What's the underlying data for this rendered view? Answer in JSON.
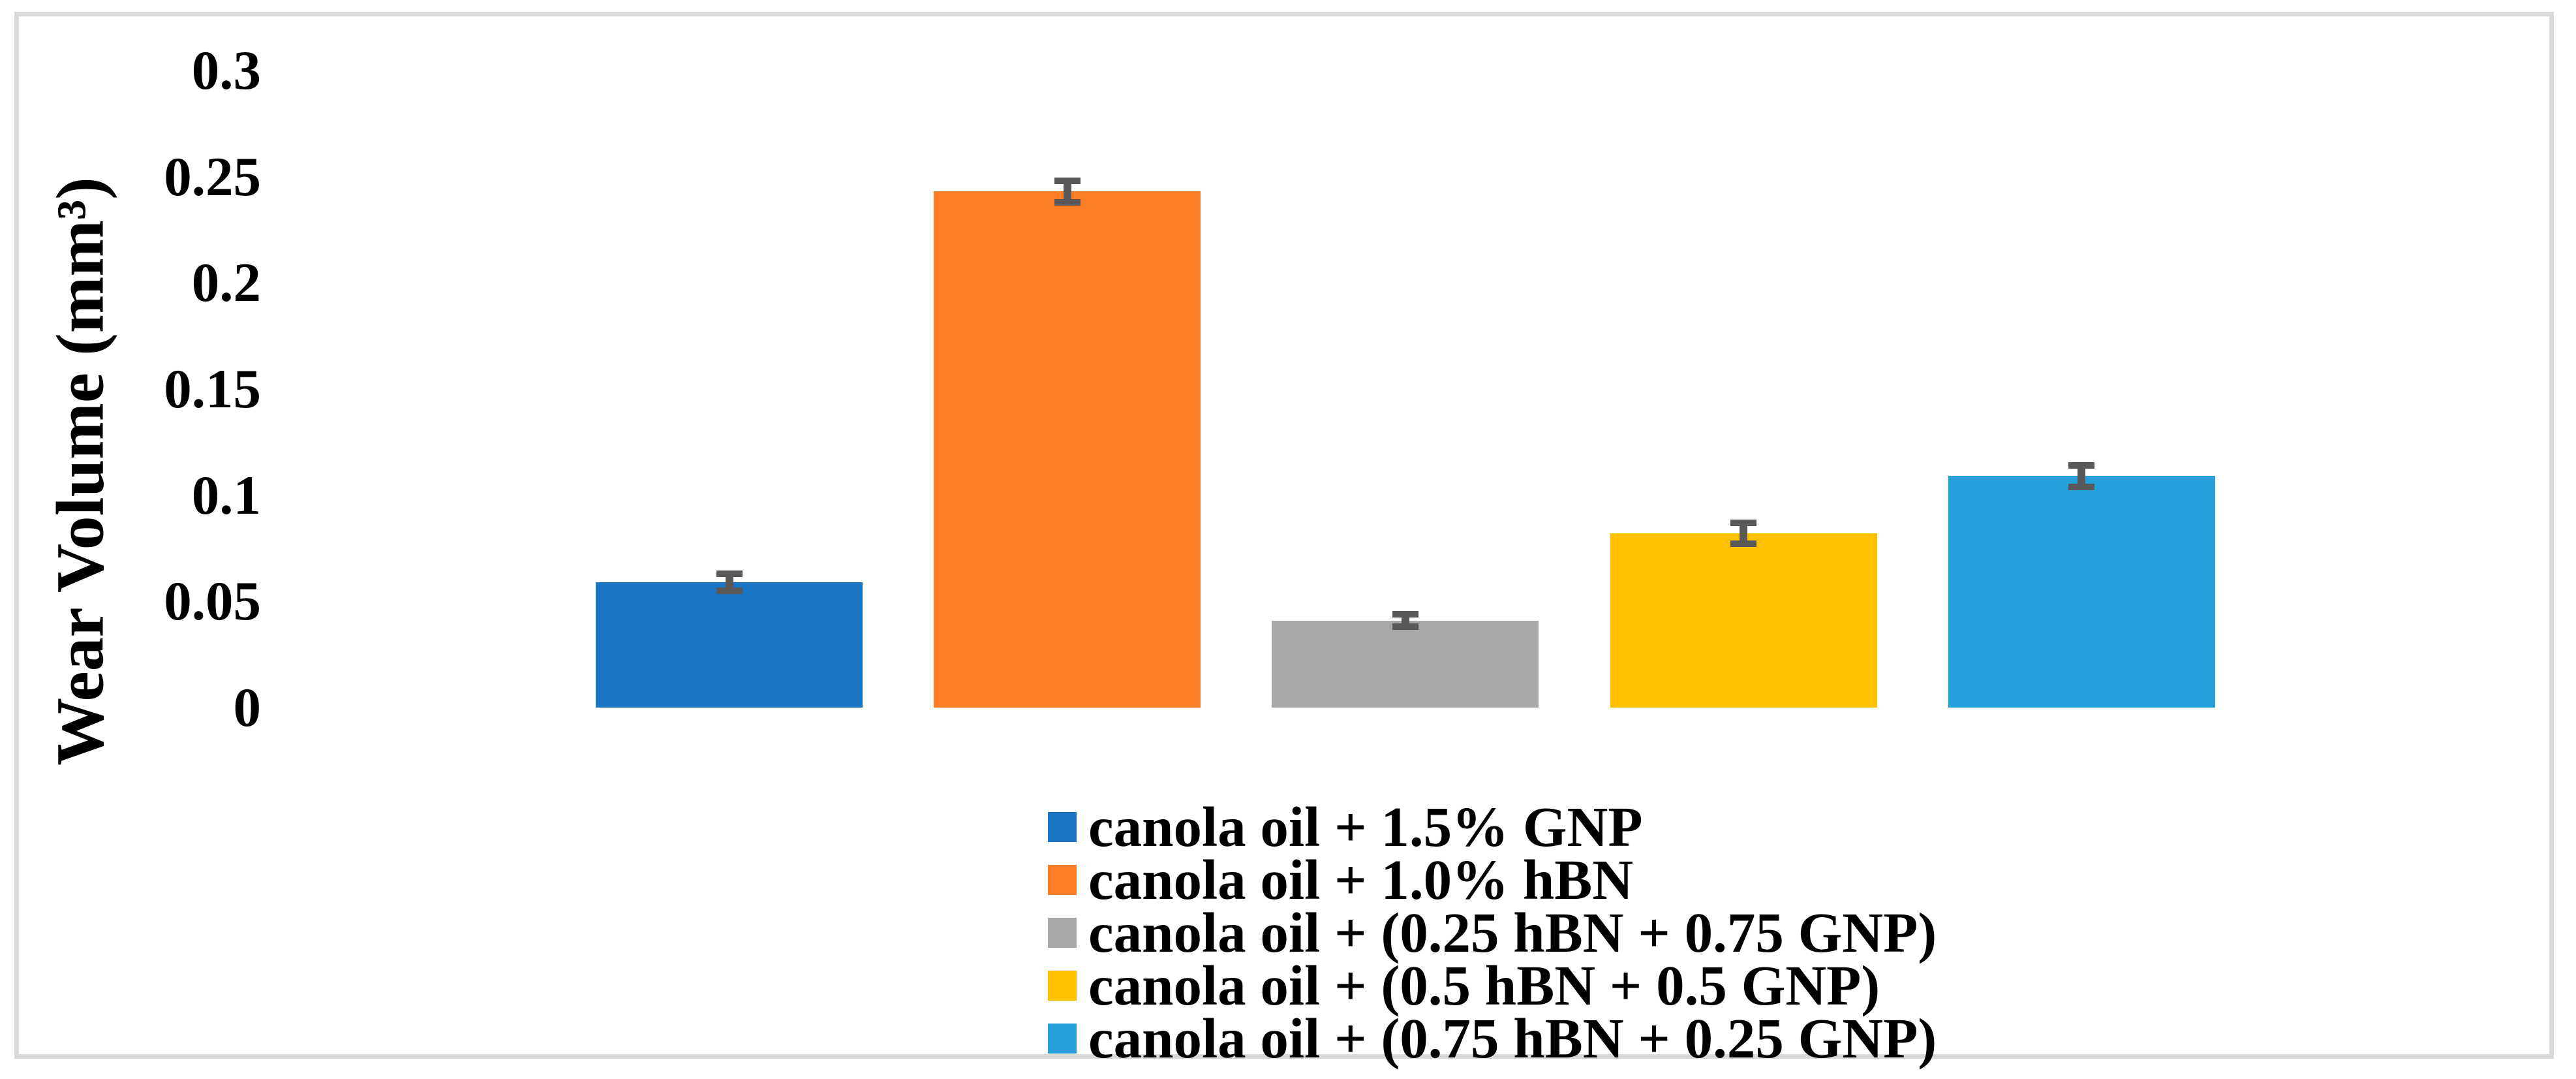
{
  "chart_data": {
    "type": "bar",
    "title": "",
    "ylabel": "Wear Volume (mm³)",
    "xlabel": "",
    "ylim": [
      0,
      0.3
    ],
    "grid": false,
    "axis_lines": false,
    "legend_position": "bottom-center",
    "error_bar_color": "#595959",
    "yticks": [
      {
        "value": 0,
        "label": "0"
      },
      {
        "value": 0.05,
        "label": "0.05"
      },
      {
        "value": 0.1,
        "label": "0.1"
      },
      {
        "value": 0.15,
        "label": "0.15"
      },
      {
        "value": 0.2,
        "label": "0.2"
      },
      {
        "value": 0.25,
        "label": "0.25"
      },
      {
        "value": 0.3,
        "label": "0.3"
      }
    ],
    "categories": [
      "canola oil + 1.5% GNP",
      "canola oil + 1.0% hBN",
      "canola oil + (0.25 hBN + 0.75 GNP)",
      "canola oil + (0.5 hBN + 0.5 GNP)",
      "canola oil + (0.75 hBN + 0.25 GNP)"
    ],
    "series": [
      {
        "label": "canola oil + 1.5% GNP",
        "value": 0.059,
        "error": 0.004,
        "color": "#1B73C4"
      },
      {
        "label": "canola oil + 1.0% hBN",
        "value": 0.243,
        "error": 0.005,
        "color": "#FB7D26"
      },
      {
        "label": "canola oil + (0.25 hBN + 0.75 GNP)",
        "value": 0.041,
        "error": 0.003,
        "color": "#A8A8A8"
      },
      {
        "label": "canola oil + (0.5 hBN + 0.5 GNP)",
        "value": 0.082,
        "error": 0.005,
        "color": "#FFC000"
      },
      {
        "label": "canola oil + (0.75 hBN + 0.25 GNP)",
        "value": 0.109,
        "error": 0.005,
        "color": "#25A0DA"
      }
    ]
  },
  "styles": {
    "background": "#FFFFFF",
    "border_color": "#D9D9D9",
    "text_color": "#000000"
  }
}
